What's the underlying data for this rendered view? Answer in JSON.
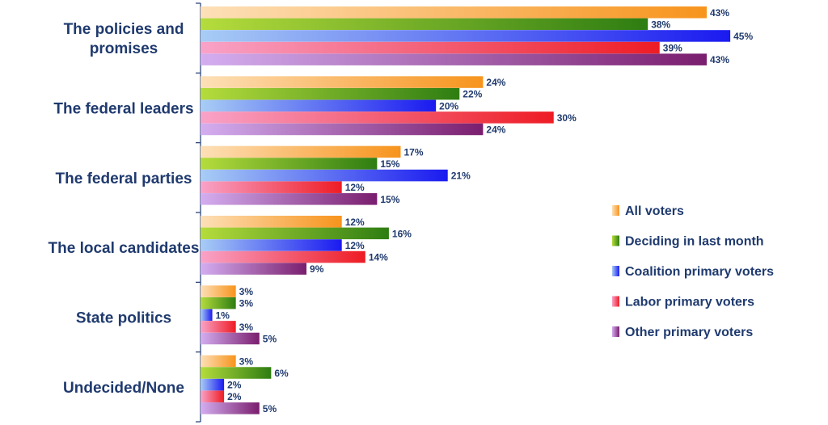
{
  "chart_data": {
    "type": "bar",
    "orientation": "horizontal",
    "categories": [
      "The policies and promises",
      "The federal leaders",
      "The federal parties",
      "The local candidates",
      "State politics",
      "Undecided/None"
    ],
    "category_label_lines": [
      [
        "The policies and",
        "promises"
      ],
      [
        "The federal leaders"
      ],
      [
        "The federal parties"
      ],
      [
        "The local candidates"
      ],
      [
        "State politics"
      ],
      [
        "Undecided/None"
      ]
    ],
    "series": [
      {
        "name": "All voters",
        "values": [
          43,
          24,
          17,
          12,
          3,
          3
        ],
        "color_light": "#fde0b8",
        "color_dark": "#f7941d"
      },
      {
        "name": "Deciding in last month",
        "values": [
          38,
          22,
          15,
          16,
          3,
          6
        ],
        "color_light": "#b5dc3c",
        "color_dark": "#2e7d12"
      },
      {
        "name": "Coalition primary voters",
        "values": [
          45,
          20,
          21,
          12,
          1,
          2
        ],
        "color_light": "#a8cdf5",
        "color_dark": "#1a1af0"
      },
      {
        "name": "Labor primary voters",
        "values": [
          39,
          30,
          12,
          14,
          3,
          2
        ],
        "color_light": "#f9a3c8",
        "color_dark": "#ee1c24"
      },
      {
        "name": "Other primary  voters",
        "values": [
          43,
          24,
          15,
          9,
          5,
          5
        ],
        "color_light": "#d4aef0",
        "color_dark": "#7a1e6e"
      }
    ],
    "value_suffix": "%",
    "xlim": [
      0,
      45
    ],
    "grid": false,
    "legend_position": "right"
  }
}
